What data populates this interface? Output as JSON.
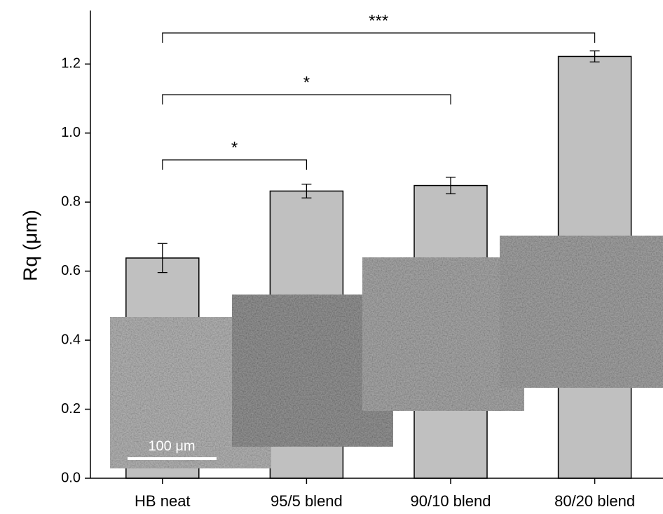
{
  "chart_data": {
    "type": "bar",
    "categories": [
      "HB neat",
      "95/5 blend",
      "90/10 blend",
      "80/20 blend"
    ],
    "values": [
      0.638,
      0.832,
      0.848,
      1.222
    ],
    "errors": [
      0.042,
      0.02,
      0.024,
      0.016
    ],
    "color": "#c0c0c0",
    "ylabel": "Rq (μm)",
    "ylim": [
      0,
      1.355
    ],
    "yticks": [
      {
        "value": 0,
        "label": "0.0"
      },
      0.2,
      0.4,
      0.6,
      0.8,
      {
        "value": 1,
        "label": "1.0"
      },
      1.2
    ],
    "annotations": [
      "*",
      "*",
      "***"
    ],
    "inset_scale_bar": "100 μm"
  }
}
